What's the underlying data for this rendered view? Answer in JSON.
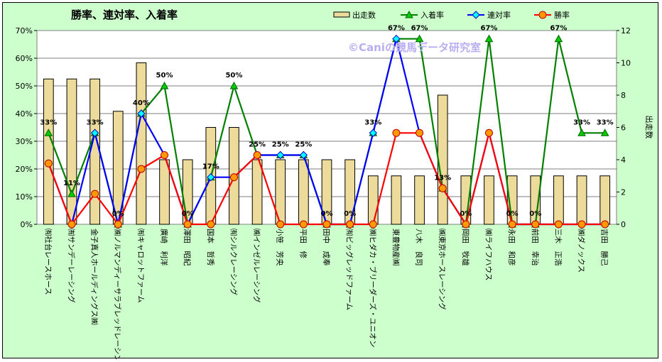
{
  "chart_data": {
    "type": "bar+line",
    "title": "勝率、連対率、入着率",
    "watermark": "©Caniの競馬データ研究室",
    "y_left": {
      "min": 0,
      "max": 70,
      "step": 10,
      "unit": "%"
    },
    "y_right": {
      "label": "出走数",
      "min": 0,
      "max": 12,
      "step": 2
    },
    "categories": [
      "㈲社台レースホース",
      "㈲サンデーレーシング",
      "金子真人ホールディングス㈱",
      "㈱ノルマンディーサラブレッドレーシング",
      "㈲キャロットファーム",
      "廣崎　利洋",
      "澤田　昭紀",
      "国本　哲秀",
      "㈲シルクレーシング",
      "㈱インゼルレーシング",
      "小笹　芳央",
      "平田　修",
      "田中　成奉",
      "㈲ビッグレッドファーム",
      "㈱ヒダカ・ブリーダーズ・ユニオン",
      "東豊物産㈱",
      "八木　良司",
      "㈱東京ホースレーシング",
      "岡田　牧雄",
      "㈱ライフハウス",
      "永田　和彦",
      "前田　幸治",
      "三木　正浩",
      "㈱ダノックス",
      "吉田　勝己"
    ],
    "series": [
      {
        "name": "出走数",
        "type": "bar",
        "axis": "right",
        "color": "#ecdb9a",
        "values": [
          9,
          9,
          9,
          7,
          10,
          4,
          4,
          6,
          6,
          4,
          4,
          4,
          4,
          4,
          3,
          3,
          3,
          8,
          3,
          3,
          3,
          3,
          3,
          3,
          3
        ]
      },
      {
        "name": "入着率",
        "type": "line",
        "axis": "left",
        "color": "#008000",
        "marker": "triangle",
        "values": [
          33,
          11,
          33,
          0,
          40,
          50,
          0,
          17,
          50,
          25,
          25,
          25,
          0,
          0,
          33,
          67,
          67,
          13,
          0,
          67,
          0,
          0,
          67,
          33,
          33
        ]
      },
      {
        "name": "連対率",
        "type": "line",
        "axis": "left",
        "color": "#0000ff",
        "marker": "diamond",
        "values": [
          22,
          0,
          33,
          0,
          40,
          25,
          0,
          17,
          17,
          25,
          25,
          25,
          0,
          0,
          33,
          67,
          33,
          13,
          0,
          33,
          0,
          0,
          0,
          0,
          0
        ]
      },
      {
        "name": "勝率",
        "type": "line",
        "axis": "left",
        "color": "#ff0000",
        "marker": "circle",
        "values": [
          22,
          0,
          11,
          0,
          20,
          25,
          0,
          0,
          17,
          25,
          0,
          0,
          0,
          0,
          0,
          33,
          33,
          13,
          0,
          33,
          0,
          0,
          0,
          0,
          0
        ]
      }
    ],
    "data_labels": [
      "33%",
      "11%",
      "33%",
      "0%",
      "40%",
      "50%",
      "0%",
      "17%",
      "50%",
      "25%",
      "25%",
      "25%",
      "0%",
      "0%",
      "33%",
      "67%",
      "67%",
      "13%",
      "0%",
      "67%",
      "0%",
      "0%",
      "67%",
      "33%",
      "33%"
    ],
    "legend_position": "top-right"
  }
}
